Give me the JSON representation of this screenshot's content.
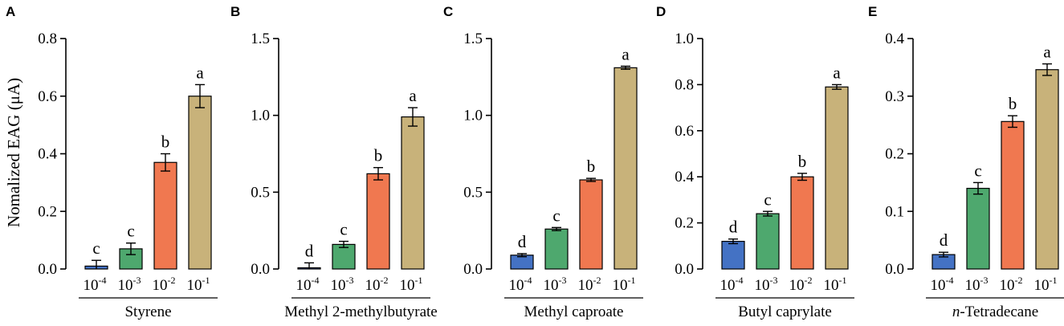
{
  "figure": {
    "ylabel": "Nomalized EAG (μA)"
  },
  "colors": {
    "blue": "#4472C4",
    "green": "#4EA86E",
    "orange": "#F07850",
    "tan": "#C8B27A",
    "black": "#000000"
  },
  "chart_data": [
    {
      "type": "bar",
      "panel": "A",
      "compound": "Styrene",
      "compound_prefix": "",
      "categories": [
        {
          "base": "10",
          "exp": "-4"
        },
        {
          "base": "10",
          "exp": "-3"
        },
        {
          "base": "10",
          "exp": "-2"
        },
        {
          "base": "10",
          "exp": "-1"
        }
      ],
      "values": [
        0.01,
        0.07,
        0.37,
        0.6
      ],
      "errors": [
        0.02,
        0.02,
        0.03,
        0.04
      ],
      "significance": [
        "c",
        "c",
        "b",
        "a"
      ],
      "ylim": [
        0,
        0.8
      ],
      "yticks": [
        0.0,
        0.2,
        0.4,
        0.6,
        0.8
      ],
      "ytick_labels": [
        "0.0",
        "0.2",
        "0.4",
        "0.6",
        "0.8"
      ]
    },
    {
      "type": "bar",
      "panel": "B",
      "compound": "Methyl 2-methylbutyrate",
      "compound_prefix": "",
      "categories": [
        {
          "base": "10",
          "exp": "-4"
        },
        {
          "base": "10",
          "exp": "-3"
        },
        {
          "base": "10",
          "exp": "-2"
        },
        {
          "base": "10",
          "exp": "-1"
        }
      ],
      "values": [
        0.0,
        0.16,
        0.62,
        0.99
      ],
      "errors": [
        0.04,
        0.02,
        0.04,
        0.06
      ],
      "significance": [
        "d",
        "c",
        "b",
        "a"
      ],
      "ylim": [
        0,
        1.5
      ],
      "yticks": [
        0.0,
        0.5,
        1.0,
        1.5
      ],
      "ytick_labels": [
        "0.0",
        "0.5",
        "1.0",
        "1.5"
      ]
    },
    {
      "type": "bar",
      "panel": "C",
      "compound": "Methyl caproate",
      "compound_prefix": "",
      "categories": [
        {
          "base": "10",
          "exp": "-4"
        },
        {
          "base": "10",
          "exp": "-3"
        },
        {
          "base": "10",
          "exp": "-2"
        },
        {
          "base": "10",
          "exp": "-1"
        }
      ],
      "values": [
        0.09,
        0.26,
        0.58,
        1.31
      ],
      "errors": [
        0.01,
        0.01,
        0.01,
        0.01
      ],
      "significance": [
        "d",
        "c",
        "b",
        "a"
      ],
      "ylim": [
        0,
        1.5
      ],
      "yticks": [
        0.0,
        0.5,
        1.0,
        1.5
      ],
      "ytick_labels": [
        "0.0",
        "0.5",
        "1.0",
        "1.5"
      ]
    },
    {
      "type": "bar",
      "panel": "D",
      "compound": "Butyl caprylate",
      "compound_prefix": "",
      "categories": [
        {
          "base": "10",
          "exp": "-4"
        },
        {
          "base": "10",
          "exp": "-3"
        },
        {
          "base": "10",
          "exp": "-2"
        },
        {
          "base": "10",
          "exp": "-1"
        }
      ],
      "values": [
        0.12,
        0.24,
        0.4,
        0.79
      ],
      "errors": [
        0.01,
        0.01,
        0.015,
        0.01
      ],
      "significance": [
        "d",
        "c",
        "b",
        "a"
      ],
      "ylim": [
        0,
        1.0
      ],
      "yticks": [
        0.0,
        0.2,
        0.4,
        0.6,
        0.8,
        1.0
      ],
      "ytick_labels": [
        "0.0",
        "0.2",
        "0.4",
        "0.6",
        "0.8",
        "1.0"
      ]
    },
    {
      "type": "bar",
      "panel": "E",
      "compound": "Tetradecane",
      "compound_prefix": "n-",
      "categories": [
        {
          "base": "10",
          "exp": "-4"
        },
        {
          "base": "10",
          "exp": "-3"
        },
        {
          "base": "10",
          "exp": "-2"
        },
        {
          "base": "10",
          "exp": "-1"
        }
      ],
      "values": [
        0.025,
        0.14,
        0.256,
        0.346
      ],
      "errors": [
        0.004,
        0.01,
        0.01,
        0.01
      ],
      "significance": [
        "d",
        "c",
        "b",
        "a"
      ],
      "ylim": [
        0,
        0.4
      ],
      "yticks": [
        0.0,
        0.1,
        0.2,
        0.3,
        0.4
      ],
      "ytick_labels": [
        "0.0",
        "0.1",
        "0.2",
        "0.3",
        "0.4"
      ]
    }
  ]
}
